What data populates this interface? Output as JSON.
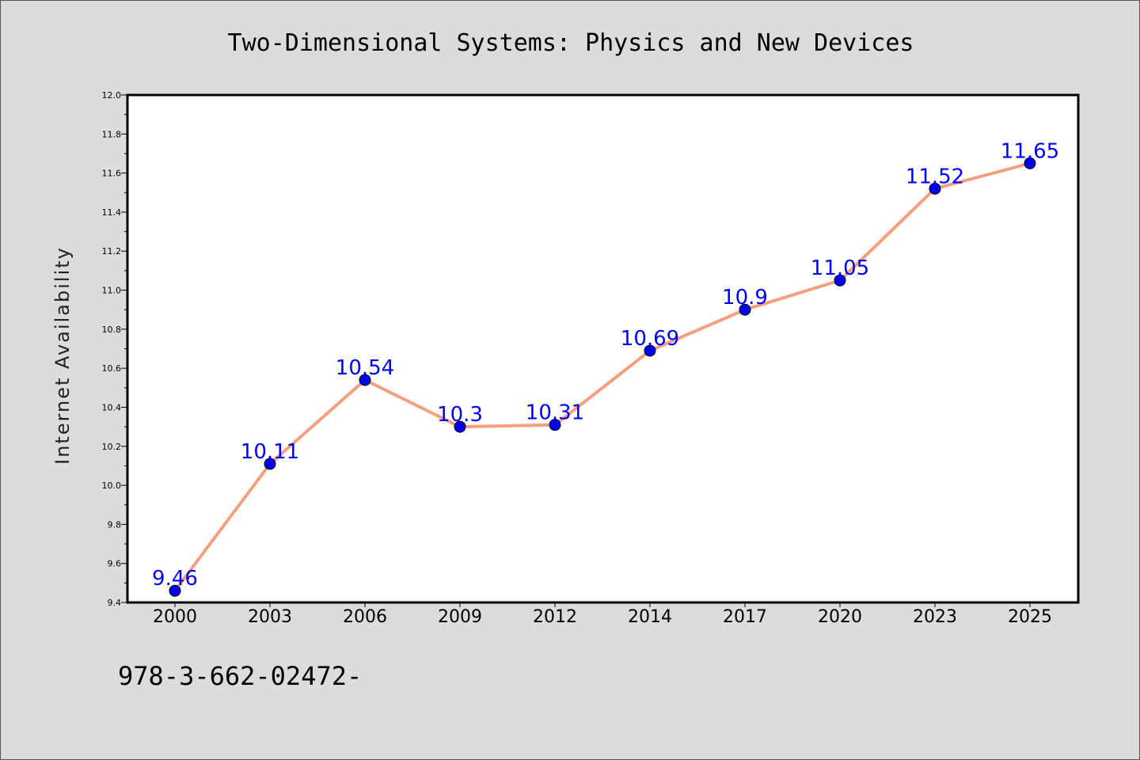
{
  "chart_data": {
    "type": "line",
    "title": "Two-Dimensional Systems: Physics and New Devices",
    "xlabel": "",
    "ylabel": "Internet Availability",
    "categories": [
      "2000",
      "2003",
      "2006",
      "2009",
      "2012",
      "2014",
      "2017",
      "2020",
      "2023",
      "2025"
    ],
    "series": [
      {
        "values": [
          9.46,
          10.11,
          10.54,
          10.3,
          10.31,
          10.69,
          10.9,
          11.05,
          11.52,
          11.65
        ],
        "line_color": "#f4a07e",
        "marker_color": "#0000ee"
      }
    ],
    "data_labels": [
      "9.46",
      "10.11",
      "10.54",
      "10.3",
      "10.31",
      "10.69",
      "10.9",
      "11.05",
      "11.52",
      "11.65"
    ],
    "ylim": [
      9.4,
      12.0
    ],
    "yticks": [
      "9.4",
      "9.6",
      "9.8",
      "10.0",
      "10.2",
      "10.4",
      "10.6",
      "10.8",
      "11.0",
      "11.2",
      "11.4",
      "11.6",
      "11.8",
      "12.0"
    ],
    "grid": false,
    "label_color": "#0000ff"
  },
  "footer_text": "978-3-662-02472-"
}
